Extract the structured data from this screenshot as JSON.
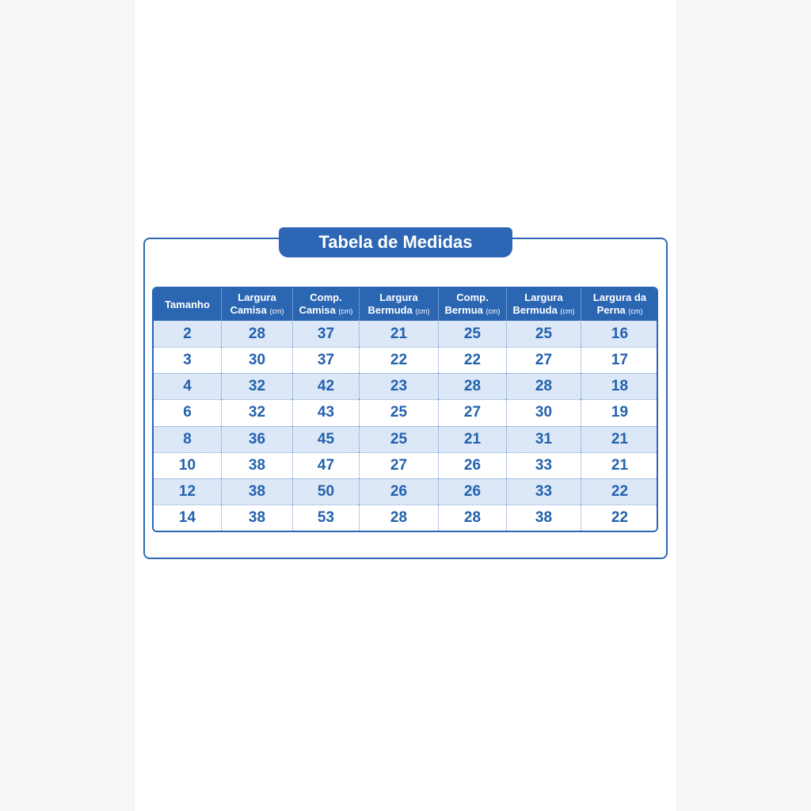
{
  "header": {
    "title": "Tabela de Medidas"
  },
  "table": {
    "headers": [
      {
        "line1": "Tamanho"
      },
      {
        "line1": "Largura",
        "line2": "Camisa",
        "unit": "(cm)"
      },
      {
        "line1": "Comp.",
        "line2": "Camisa",
        "unit": "(cm)"
      },
      {
        "line1": "Largura",
        "line2": "Bermuda",
        "unit": "(cm)"
      },
      {
        "line1": "Comp.",
        "line2": "Bermua",
        "unit": "(cm)"
      },
      {
        "line1": "Largura",
        "line2": "Bermuda",
        "unit": "(cm)"
      },
      {
        "line1": "Largura da",
        "line2": "Perna",
        "unit": "(cm)"
      }
    ],
    "rows": [
      [
        2,
        28,
        37,
        21,
        25,
        25,
        16
      ],
      [
        3,
        30,
        37,
        22,
        22,
        27,
        17
      ],
      [
        4,
        32,
        42,
        23,
        28,
        28,
        18
      ],
      [
        6,
        32,
        43,
        25,
        27,
        30,
        19
      ],
      [
        8,
        36,
        45,
        25,
        21,
        31,
        21
      ],
      [
        10,
        38,
        47,
        27,
        26,
        33,
        21
      ],
      [
        12,
        38,
        50,
        26,
        26,
        33,
        22
      ],
      [
        14,
        38,
        53,
        28,
        28,
        38,
        22
      ]
    ]
  }
}
